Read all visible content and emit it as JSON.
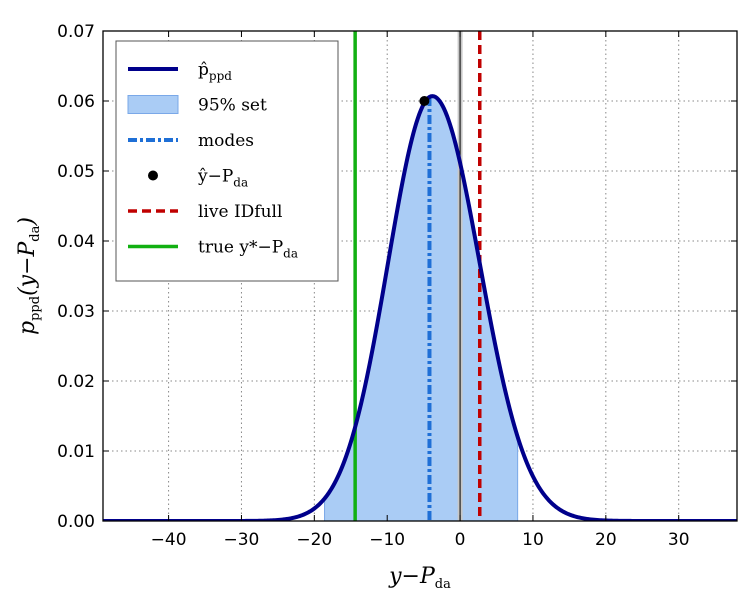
{
  "chart_data": {
    "type": "line",
    "title": "",
    "xlabel": "y−P",
    "xlabel_sub": "da",
    "ylabel": "p",
    "ylabel_sub": "ppd",
    "ylabel_arg": "(y−P",
    "ylabel_arg_sub": "da",
    "ylabel_close": ")",
    "xlim": [
      -49,
      38
    ],
    "ylim": [
      0,
      0.07
    ],
    "grid": true,
    "x_ticks": [
      -40,
      -30,
      -20,
      -10,
      0,
      10,
      20,
      30
    ],
    "x_tick_labels": [
      "−40",
      "−30",
      "−20",
      "−10",
      "0",
      "10",
      "20",
      "30"
    ],
    "y_ticks": [
      0.0,
      0.01,
      0.02,
      0.03,
      0.04,
      0.05,
      0.06,
      0.07
    ],
    "y_tick_labels": [
      "0.00",
      "0.01",
      "0.02",
      "0.03",
      "0.04",
      "0.05",
      "0.06",
      "0.07"
    ],
    "density": {
      "name": "p̂ppd",
      "mode": -3.8,
      "sigma_left": 6.1,
      "sigma_right": 6.5,
      "peak": 0.0607,
      "color": "#00008b"
    },
    "credible_set": {
      "name": "95% set",
      "from": -18.6,
      "to": 7.9,
      "color": "#aaccf5",
      "edge_color": "#7aa8e8"
    },
    "modes": {
      "name": "modes",
      "x": -4.2,
      "color": "#1f6fd6"
    },
    "point_estimate": {
      "name": "ŷ−P",
      "name_sub": "da",
      "x": -4.9,
      "y": 0.06,
      "color": "#000000"
    },
    "live_idfull": {
      "name": "live IDfull",
      "x": 2.7,
      "color": "#c00000"
    },
    "true_value": {
      "name": "true y*−P",
      "name_sub": "da",
      "x": -14.4,
      "color": "#12b012"
    },
    "zero_line": {
      "x": 0,
      "color": "#000000"
    },
    "legend": {
      "placement": "top-left",
      "entries": [
        {
          "label": "p̂",
          "sub": "ppd",
          "kind": "line"
        },
        {
          "label": "95% set",
          "sub": "",
          "kind": "patch"
        },
        {
          "label": "modes",
          "sub": "",
          "kind": "dashdot"
        },
        {
          "label": "ŷ−P",
          "sub": "da",
          "kind": "marker"
        },
        {
          "label": "live IDfull",
          "sub": "",
          "kind": "dashed"
        },
        {
          "label": "true y*−P",
          "sub": "da",
          "kind": "green"
        }
      ]
    }
  }
}
